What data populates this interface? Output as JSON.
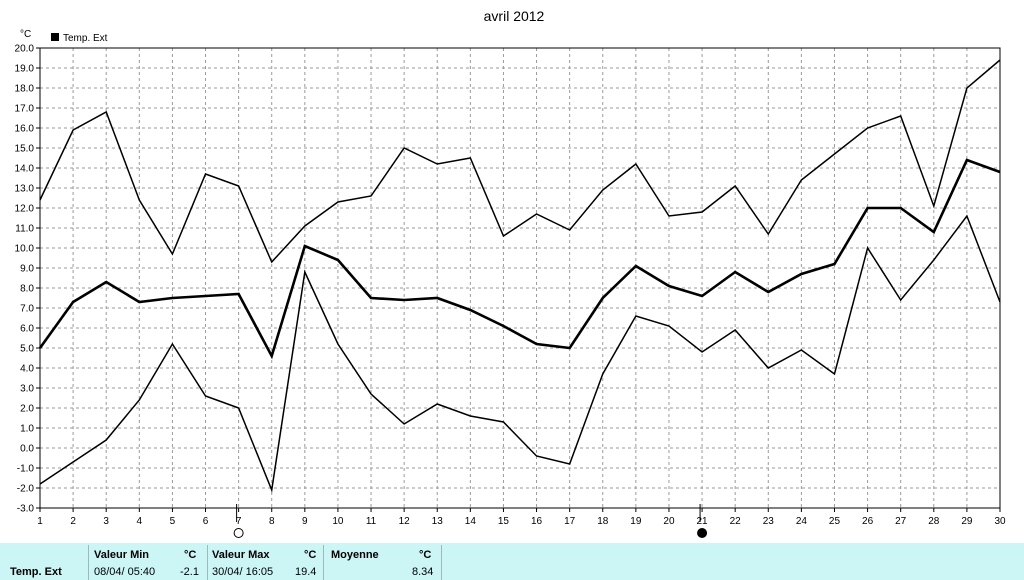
{
  "chart_data": {
    "type": "line",
    "title": "avril 2012",
    "ylabel": "°C",
    "xlabel": "",
    "ylim": [
      -3.0,
      20.0
    ],
    "y_ticks": [
      "-3.0",
      "-2.0",
      "-1.0",
      "0.0",
      "1.0",
      "2.0",
      "3.0",
      "4.0",
      "5.0",
      "6.0",
      "7.0",
      "8.0",
      "9.0",
      "10.0",
      "11.0",
      "12.0",
      "13.0",
      "14.0",
      "15.0",
      "16.0",
      "17.0",
      "18.0",
      "19.0",
      "20.0"
    ],
    "x": [
      1,
      2,
      3,
      4,
      5,
      6,
      7,
      8,
      9,
      10,
      11,
      12,
      13,
      14,
      15,
      16,
      17,
      18,
      19,
      20,
      21,
      22,
      23,
      24,
      25,
      26,
      27,
      28,
      29,
      30
    ],
    "x_tick_labels": [
      "1",
      "2",
      "3",
      "4",
      "5",
      "6",
      "7",
      "8",
      "9",
      "10",
      "11",
      "12",
      "13",
      "14",
      "15",
      "16",
      "17",
      "18",
      "19",
      "20",
      "21",
      "22",
      "23",
      "24",
      "25",
      "26",
      "27",
      "28",
      "29",
      "30"
    ],
    "grid": true,
    "legend": {
      "position": "top-left",
      "entries": [
        "Temp. Ext"
      ]
    },
    "series": [
      {
        "role": "max",
        "values": [
          12.4,
          15.9,
          16.8,
          12.4,
          9.7,
          13.7,
          13.1,
          9.3,
          11.1,
          12.3,
          12.6,
          15.0,
          14.2,
          14.5,
          10.6,
          11.7,
          10.9,
          12.9,
          14.2,
          11.6,
          11.8,
          13.1,
          10.7,
          13.4,
          14.7,
          16.0,
          16.6,
          12.1,
          18.0,
          19.4
        ]
      },
      {
        "role": "mean",
        "name": "Temp. Ext",
        "values": [
          5.0,
          7.3,
          8.3,
          7.3,
          7.5,
          7.6,
          7.7,
          4.6,
          10.1,
          9.4,
          7.5,
          7.4,
          7.5,
          6.9,
          6.1,
          5.2,
          5.0,
          7.5,
          9.1,
          8.1,
          7.6,
          8.8,
          7.8,
          8.7,
          9.2,
          12.0,
          12.0,
          10.8,
          14.4,
          13.8
        ]
      },
      {
        "role": "min",
        "values": [
          -1.8,
          -0.7,
          0.4,
          2.4,
          5.2,
          2.6,
          2.0,
          -2.1,
          8.8,
          5.2,
          2.7,
          1.2,
          2.2,
          1.6,
          1.3,
          -0.4,
          -0.8,
          3.7,
          6.6,
          6.1,
          4.8,
          5.9,
          4.0,
          4.9,
          3.7,
          10.0,
          7.4,
          9.4,
          11.6,
          7.3
        ]
      }
    ],
    "moon_phases": [
      {
        "day": 7,
        "phase": "full-moon",
        "color": "#ffffff"
      },
      {
        "day": 21,
        "phase": "new-moon",
        "color": "#000000"
      }
    ]
  },
  "stats": {
    "series_label": "Temp. Ext",
    "min_header": "Valeur Min",
    "min_unit": "°C",
    "min_date": "08/04/ 05:40",
    "min_value": "-2.1",
    "max_header": "Valeur Max",
    "max_unit": "°C",
    "max_date": "30/04/ 16:05",
    "max_value": "19.4",
    "mean_header": "Moyenne",
    "mean_unit": "°C",
    "mean_value": "8.34"
  },
  "colors": {
    "line": "#000000",
    "grid": "#9a9a9a",
    "panel_bg": "#ccf5f5"
  }
}
